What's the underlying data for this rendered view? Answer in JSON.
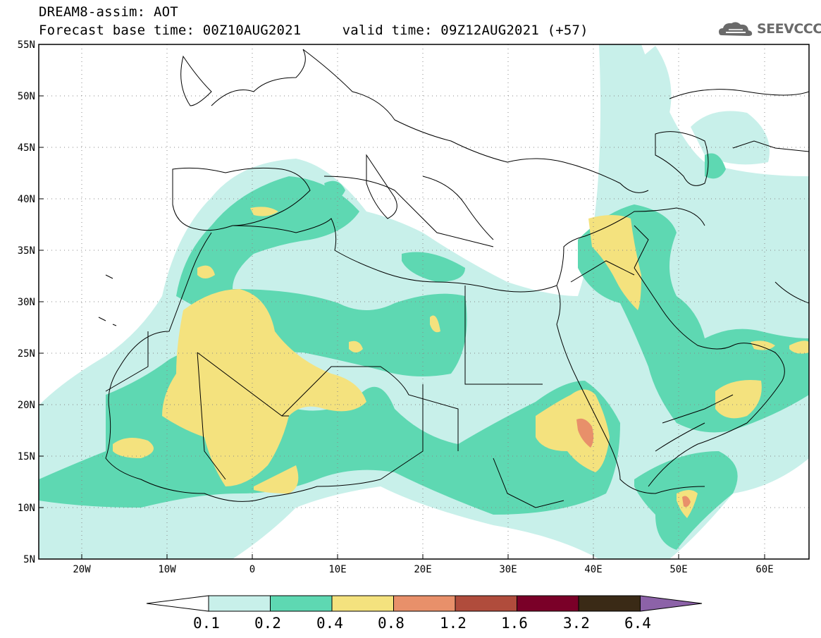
{
  "header": {
    "line1": "DREAM8-assim: AOT",
    "line2": "Forecast base time: 00Z10AUG2021     valid time: 09Z12AUG2021 (+57)",
    "logo_text": "SEEVCCC"
  },
  "map": {
    "lon_range": [
      -25,
      65
    ],
    "lat_range": [
      5,
      55
    ],
    "lat_labels": [
      "55N",
      "50N",
      "45N",
      "40N",
      "35N",
      "30N",
      "25N",
      "20N",
      "15N",
      "10N",
      "5N"
    ],
    "lon_labels": [
      "20W",
      "10W",
      "0",
      "10E",
      "20E",
      "30E",
      "40E",
      "50E",
      "60E"
    ]
  },
  "colorbar": {
    "colors": [
      "#c8f0ea",
      "#5ed8b2",
      "#f4e27e",
      "#e8906a",
      "#b04c3c",
      "#7a0028",
      "#3a2a16",
      "#8c62a8"
    ],
    "labels": [
      "0.1",
      "0.2",
      "0.4",
      "0.8",
      "1.2",
      "1.6",
      "3.2",
      "6.4"
    ]
  }
}
